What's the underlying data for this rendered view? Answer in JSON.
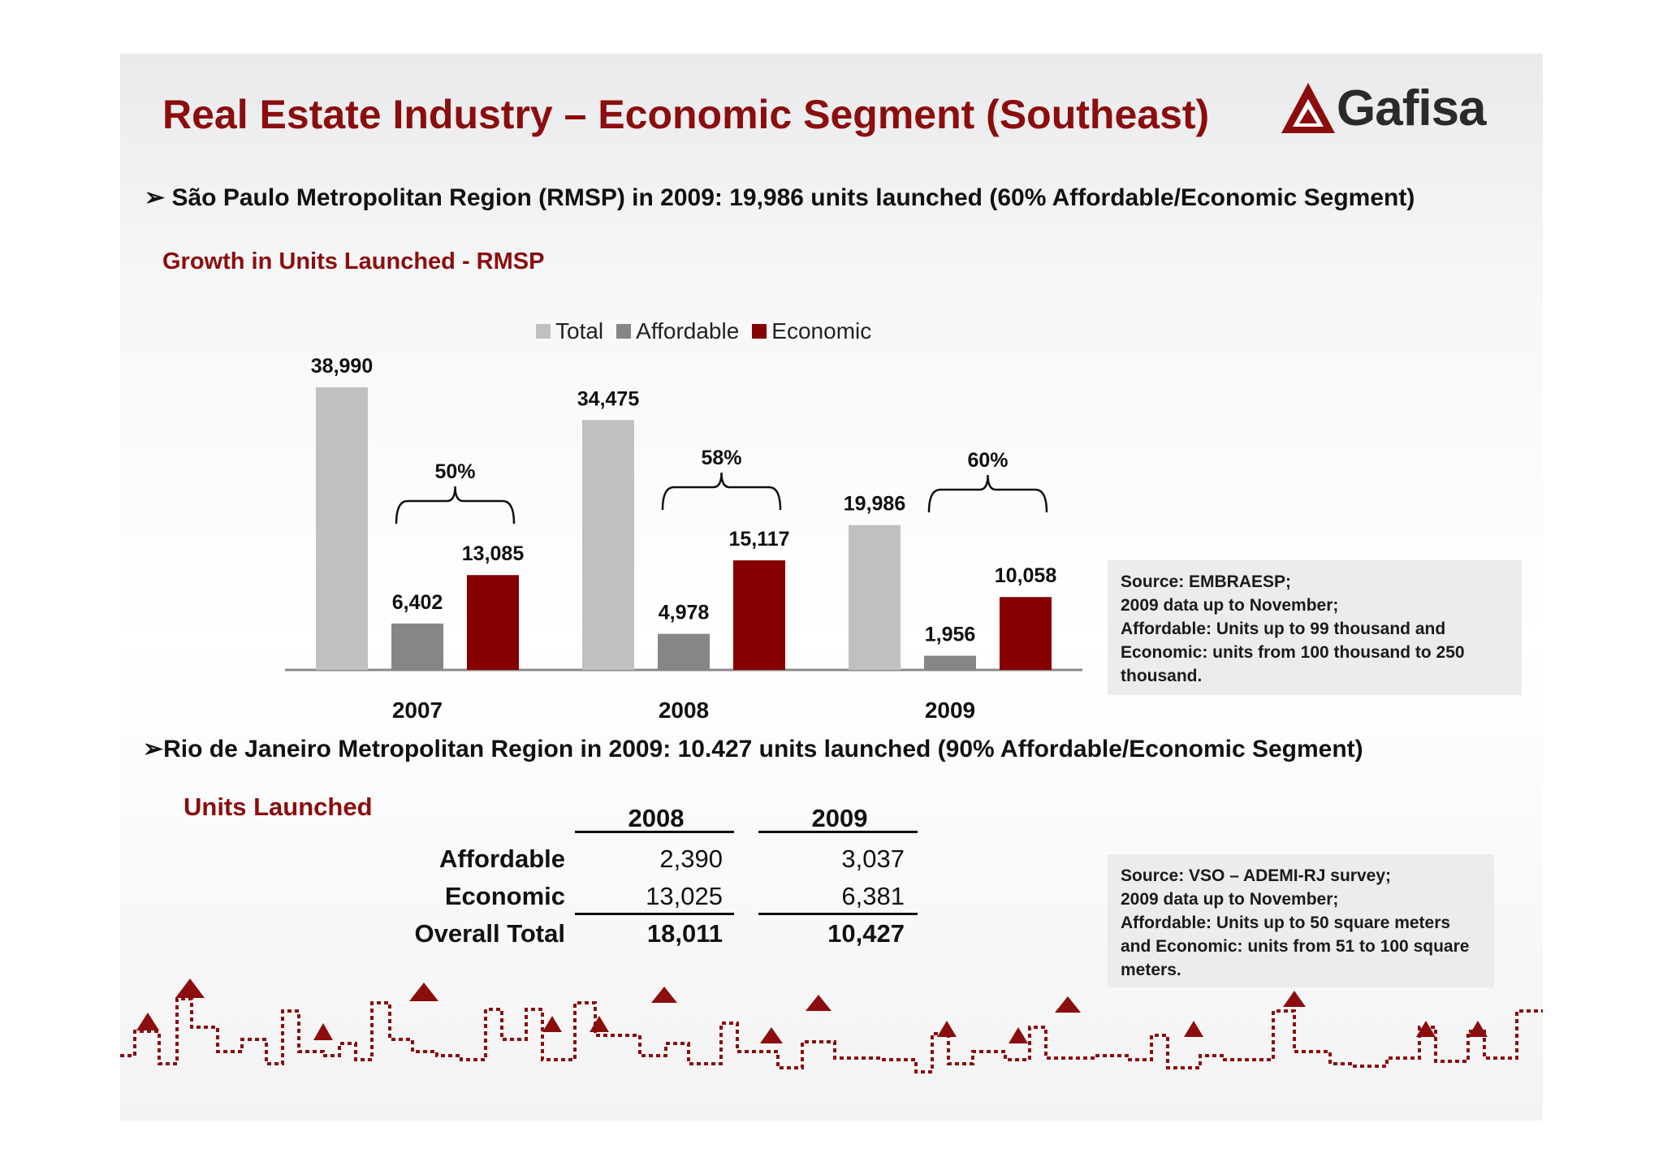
{
  "colors": {
    "brand": "#8b0d0d",
    "total": "#c0bfc2",
    "affordable": "#868687",
    "economic": "#850000"
  },
  "header": {
    "title": "Real Estate Industry – Economic Segment (Southeast)",
    "logo_text": "Gafisa"
  },
  "bullet1": "São Paulo Metropolitan Region (RMSP) in 2009: 19,986 units launched (60% Affordable/Economic Segment)",
  "chart_heading": "Growth in Units Launched - RMSP",
  "chart_data": {
    "type": "bar",
    "title": "",
    "categories": [
      "2007",
      "2008",
      "2009"
    ],
    "series": [
      {
        "name": "Total",
        "values": [
          38990,
          34475,
          19986
        ],
        "labels": [
          "38,990",
          "34,475",
          "19,986"
        ],
        "color": "#c0bfc2"
      },
      {
        "name": "Affordable",
        "values": [
          6402,
          4978,
          1956
        ],
        "labels": [
          "6,402",
          "4,978",
          "1,956"
        ],
        "color": "#868687"
      },
      {
        "name": "Economic",
        "values": [
          13085,
          15117,
          10058
        ],
        "labels": [
          "13,085",
          "15,117",
          "10,058"
        ],
        "color": "#850000"
      }
    ],
    "annotations": [
      "50%",
      "58%",
      "60%"
    ],
    "ylim": [
      0,
      40000
    ],
    "grid": false,
    "legend_position": "top",
    "xlabel": "",
    "ylabel": ""
  },
  "source1": [
    "Source: EMBRAESP;",
    "2009 data up to November;",
    "Affordable: Units up to 99 thousand and",
    "Economic: units from 100 thousand to 250",
    "thousand."
  ],
  "bullet2": "Rio de Janeiro Metropolitan Region in 2009: 10.427 units launched (90%  Affordable/Economic Segment)",
  "table": {
    "heading": "Units Launched",
    "columns": [
      "2008",
      "2009"
    ],
    "rows": [
      {
        "label": "Affordable",
        "values": [
          "2,390",
          "3,037"
        ]
      },
      {
        "label": "Economic",
        "values": [
          "13,025",
          "6,381"
        ]
      },
      {
        "label": "Overall Total",
        "values": [
          "18,011",
          "10,427"
        ]
      }
    ]
  },
  "source2": [
    "Source: VSO – ADEMI-RJ survey;",
    "2009 data up to November;",
    "Affordable: Units up to 50 square meters",
    "and Economic: units from 51 to 100 square",
    "meters."
  ]
}
